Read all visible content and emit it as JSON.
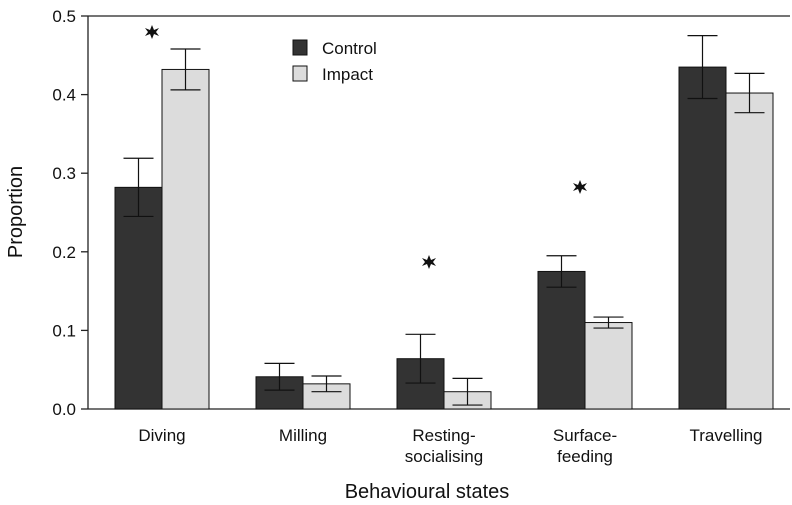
{
  "chart_data": {
    "type": "bar",
    "x_label": "Behavioural states",
    "y_label": "Proportion",
    "categories": [
      [
        "Diving"
      ],
      [
        "Milling"
      ],
      [
        "Resting-",
        "socialising"
      ],
      [
        "Surface-",
        "feeding"
      ],
      [
        "Travelling"
      ]
    ],
    "series": [
      {
        "name": "Control",
        "color": "#333333",
        "values": [
          0.282,
          0.041,
          0.064,
          0.175,
          0.435
        ],
        "errors": [
          0.037,
          0.017,
          0.031,
          0.02,
          0.04
        ]
      },
      {
        "name": "Impact",
        "color": "#dcdcdc",
        "values": [
          0.432,
          0.032,
          0.022,
          0.11,
          0.402
        ],
        "errors": [
          0.026,
          0.01,
          0.017,
          0.007,
          0.025
        ]
      }
    ],
    "ylim": [
      0,
      0.5
    ],
    "yticks": [
      {
        "value": 0,
        "label": "0.0"
      },
      0.1,
      0.2,
      0.3,
      0.4,
      0.5
    ],
    "legend": "top-center"
  }
}
